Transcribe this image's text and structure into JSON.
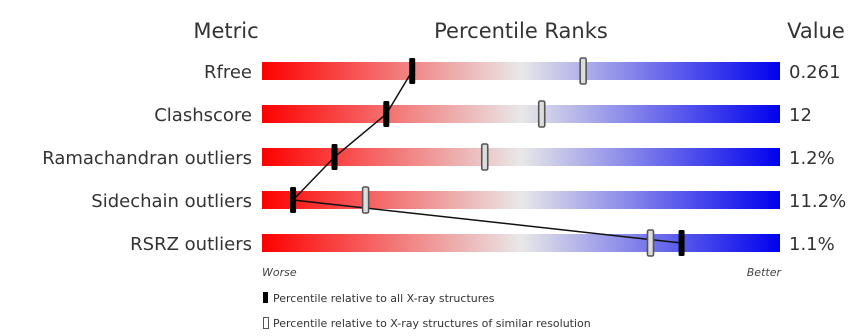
{
  "chart_data": {
    "type": "bar",
    "title": "",
    "headers": {
      "metric": "Metric",
      "ranks": "Percentile Ranks",
      "value": "Value"
    },
    "xlim": [
      0,
      100
    ],
    "axis_labels": {
      "left": "Worse",
      "right": "Better"
    },
    "gradient_colors": {
      "worse": "#ff0000",
      "mid": "#e8e8e8",
      "better": "#0000ee"
    },
    "rows": [
      {
        "metric": "Rfree",
        "value": "0.261",
        "all": 29,
        "similar": 62
      },
      {
        "metric": "Clashscore",
        "value": "12",
        "all": 24,
        "similar": 54
      },
      {
        "metric": "Ramachandran outliers",
        "value": "1.2%",
        "all": 14,
        "similar": 43
      },
      {
        "metric": "Sidechain outliers",
        "value": "11.2%",
        "all": 6,
        "similar": 20
      },
      {
        "metric": "RSRZ outliers",
        "value": "1.1%",
        "all": 81,
        "similar": 75
      }
    ],
    "legend": {
      "all": "Percentile relative to all X-ray structures",
      "similar": "Percentile relative to X-ray structures of similar resolution"
    }
  }
}
